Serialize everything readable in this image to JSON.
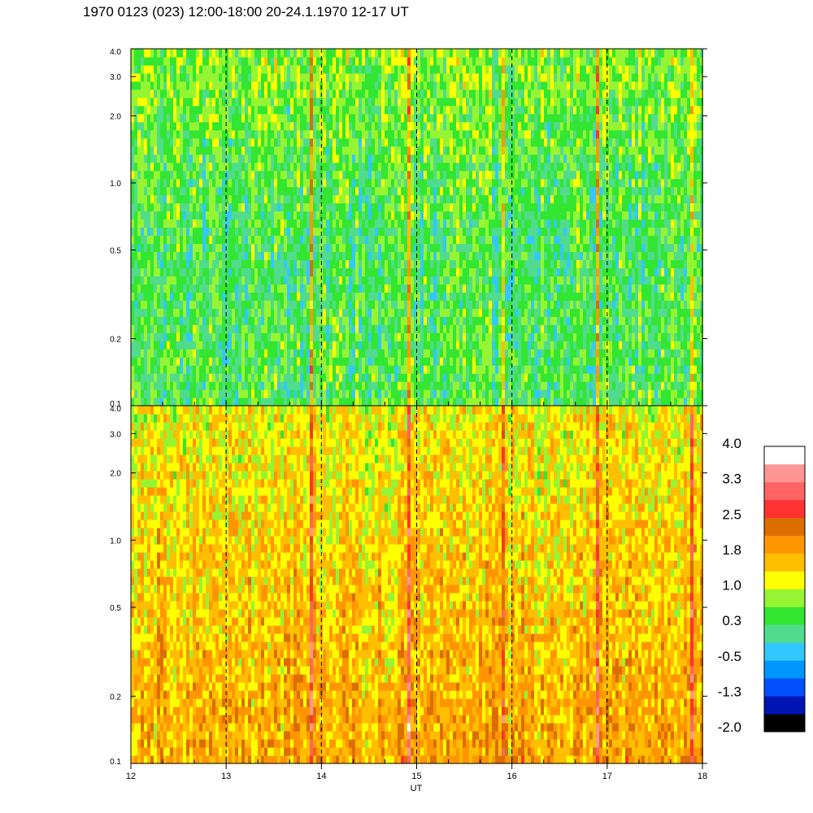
{
  "title": "1970 0123 (023) 12:00-18:00 20-24.1.1970  12-17 UT",
  "chart_data": {
    "type": "heatmap",
    "xlabel": "UT",
    "x_ticks": [
      12,
      13,
      14,
      15,
      16,
      17,
      18
    ],
    "x_tick_labels": [
      "12",
      "13",
      "14",
      "15",
      "16",
      "17",
      "18"
    ],
    "xlim": [
      12,
      18
    ],
    "dashed_vlines": [
      13,
      14,
      15,
      16,
      17
    ],
    "panels": [
      {
        "ylim": [
          0.1,
          4.0
        ],
        "yscale": "log",
        "y_ticks": [
          0.1,
          0.2,
          0.5,
          1.0,
          2.0,
          3.0,
          4.0
        ],
        "y_tick_labels": [
          "0.1",
          "0.2",
          "0.5",
          "1.0",
          "2.0",
          "3.0",
          "4.0"
        ],
        "value_profile": {
          "low_freq": 0.5,
          "mid_freq": 0.4,
          "high_freq": 0.8
        }
      },
      {
        "ylim": [
          0.1,
          4.0
        ],
        "yscale": "log",
        "y_ticks": [
          0.1,
          0.2,
          0.5,
          1.0,
          2.0,
          3.0,
          4.0
        ],
        "y_tick_labels": [
          "0.1",
          "0.2",
          "0.5",
          "1.0",
          "2.0",
          "3.0",
          "4.0"
        ],
        "value_profile": {
          "low_freq": 1.9,
          "mid_freq": 1.6,
          "high_freq": 1.3
        }
      }
    ],
    "spike_times": [
      12.9,
      13.88,
      14.9,
      15.9,
      16.88,
      17.88
    ],
    "colorbar": {
      "range": [
        -2.0,
        4.2
      ],
      "tick_labels": [
        "4.0",
        "3.3",
        "2.5",
        "1.8",
        "1.0",
        "0.3",
        "-0.5",
        "-1.3",
        "-2.0"
      ],
      "colors_bottom_to_top": [
        "#000000",
        "#0014b4",
        "#0050ff",
        "#0096ff",
        "#32c8ff",
        "#50dc8c",
        "#32e632",
        "#96f532",
        "#ffff00",
        "#ffbe00",
        "#ff9600",
        "#dc6e00",
        "#ff3232",
        "#ff6464",
        "#ff9696",
        "#ffffff"
      ]
    }
  }
}
